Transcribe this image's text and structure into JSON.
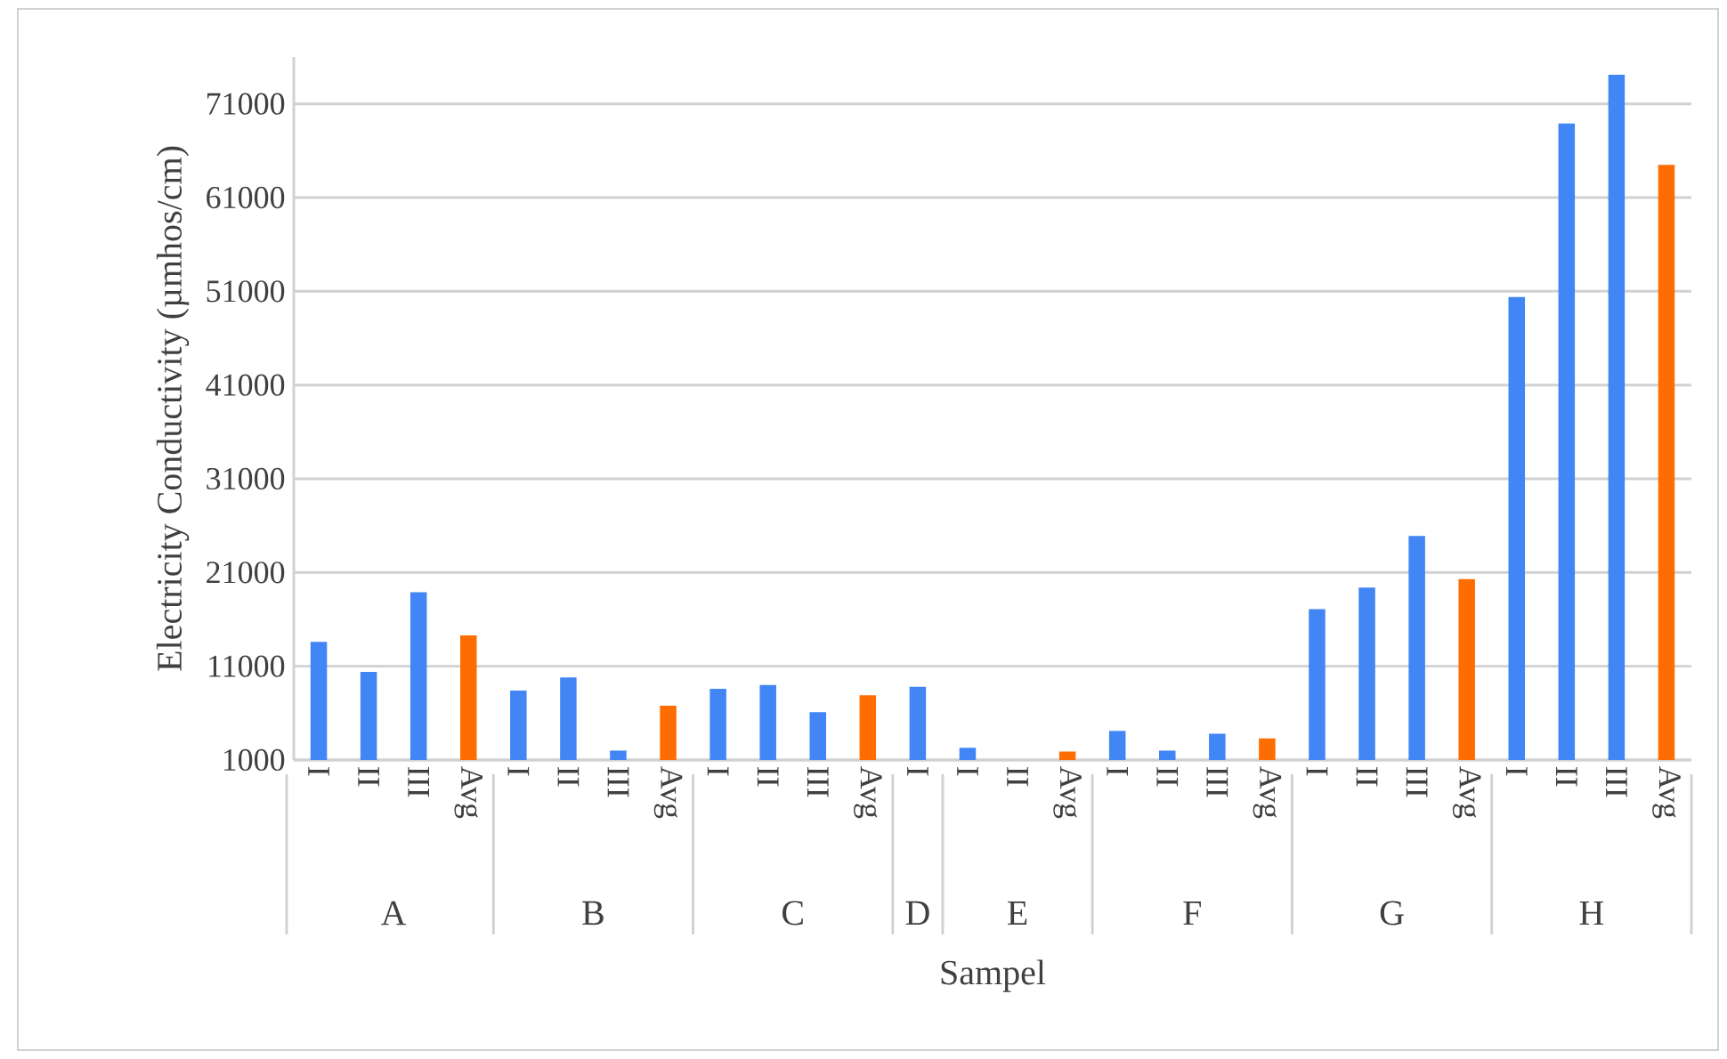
{
  "chart_data": {
    "type": "bar",
    "xlabel": "Sampel",
    "ylabel": "Electricity Conductivity (µmhos/cm)",
    "categories": [
      "I",
      "II",
      "III",
      "Avg",
      "I",
      "II",
      "III",
      "Avg",
      "I",
      "II",
      "III",
      "Avg",
      "I",
      "I",
      "II",
      "Avg",
      "I",
      "II",
      "III",
      "Avg",
      "I",
      "II",
      "III",
      "Avg",
      "I",
      "II",
      "III",
      "Avg"
    ],
    "values": [
      13600,
      10400,
      18900,
      14300,
      8400,
      9800,
      2000,
      6800,
      8600,
      9000,
      6100,
      7900,
      8800,
      2300,
      1000,
      1900,
      4100,
      2000,
      3800,
      3300,
      17100,
      19400,
      24900,
      20300,
      50400,
      68900,
      74100,
      64500
    ],
    "colors": [
      "#4285f4",
      "#4285f4",
      "#4285f4",
      "#ff6d01",
      "#4285f4",
      "#4285f4",
      "#4285f4",
      "#ff6d01",
      "#4285f4",
      "#4285f4",
      "#4285f4",
      "#ff6d01",
      "#4285f4",
      "#4285f4",
      "#4285f4",
      "#ff6d01",
      "#4285f4",
      "#4285f4",
      "#4285f4",
      "#ff6d01",
      "#4285f4",
      "#4285f4",
      "#4285f4",
      "#ff6d01",
      "#4285f4",
      "#4285f4",
      "#4285f4",
      "#ff6d01"
    ],
    "ylim": [
      1000,
      76000
    ],
    "yticks": [
      1000,
      11000,
      21000,
      31000,
      41000,
      51000,
      61000,
      71000
    ],
    "grid": "y",
    "annotations": [
      "A",
      "B",
      "C",
      "D",
      "E",
      "F",
      "G",
      "H"
    ]
  }
}
